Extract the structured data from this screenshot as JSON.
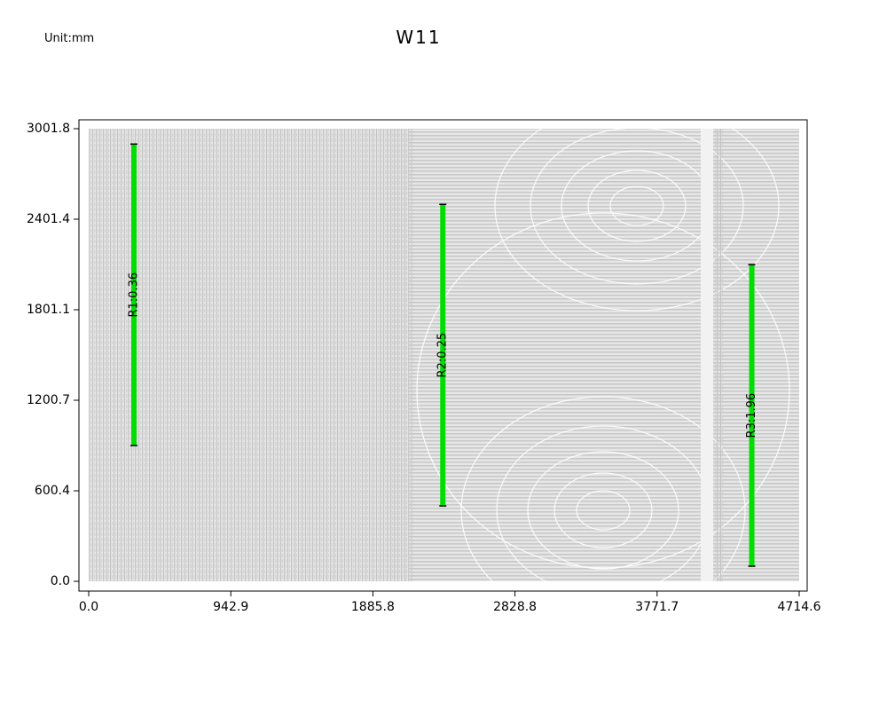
{
  "unit_label": "Unit:mm",
  "chart_data": {
    "type": "line",
    "title": "W11",
    "xlabel": "",
    "ylabel": "",
    "xlim": [
      0.0,
      4714.6
    ],
    "ylim": [
      0.0,
      3001.8
    ],
    "x_ticks": [
      "0.0",
      "942.9",
      "1885.8",
      "2828.8",
      "3771.7",
      "4714.6"
    ],
    "y_ticks": [
      "0.0",
      "600.4",
      "1200.7",
      "1801.1",
      "2401.4",
      "3001.8"
    ],
    "grid": false,
    "background": "contour texture (gray)",
    "measurements": [
      {
        "label": "R1:0.36",
        "x": 300,
        "y_start": 900,
        "y_end": 2900
      },
      {
        "label": "R2:0.25",
        "x": 2350,
        "y_start": 500,
        "y_end": 2500
      },
      {
        "label": "R3:1.96",
        "x": 4400,
        "y_start": 100,
        "y_end": 2100
      }
    ],
    "colors": {
      "measurement": "#00dd00",
      "contour": "#c4c4c4",
      "axis": "#000000"
    }
  }
}
